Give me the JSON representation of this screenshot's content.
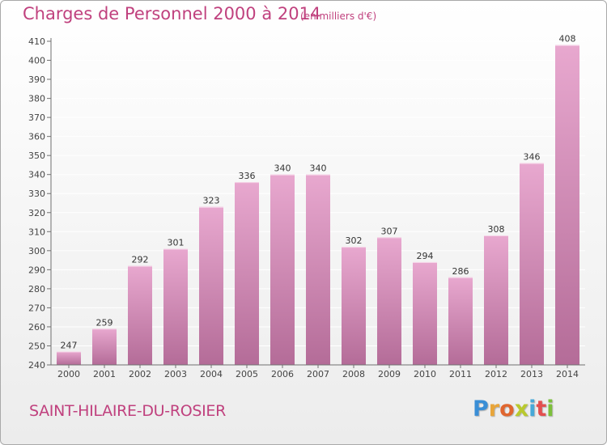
{
  "title": "Charges de Personnel 2000 à 2014",
  "subtitle": "(en milliers d'€)",
  "place_name": "SAINT-HILAIRE-DU-ROSIER",
  "logo": {
    "letters": [
      "P",
      "r",
      "o",
      "x",
      "i",
      "t",
      "i"
    ],
    "colors": [
      "#3a8ed6",
      "#e8a53a",
      "#e0662f",
      "#b9c92e",
      "#47a9d8",
      "#e34f4f",
      "#7cbf3b"
    ]
  },
  "colors": {
    "bar_top": "#e8a8cf",
    "bar_bottom": "#b46c98",
    "accent": "#c0417e",
    "axis": "#707070",
    "grid": "#ffffff"
  },
  "chart_data": {
    "type": "bar",
    "title": "Charges de Personnel 2000 à 2014",
    "subtitle": "(en milliers d'€)",
    "categories": [
      "2000",
      "2001",
      "2002",
      "2003",
      "2004",
      "2005",
      "2006",
      "2007",
      "2008",
      "2009",
      "2010",
      "2011",
      "2012",
      "2013",
      "2014"
    ],
    "values": [
      247,
      259,
      292,
      301,
      323,
      336,
      340,
      340,
      302,
      307,
      294,
      286,
      308,
      346,
      408
    ],
    "ylim": [
      240,
      410
    ],
    "yticks": [
      240,
      250,
      260,
      270,
      280,
      290,
      300,
      310,
      320,
      330,
      340,
      350,
      360,
      370,
      380,
      390,
      400,
      410
    ],
    "grid": true,
    "data_labels": true
  }
}
